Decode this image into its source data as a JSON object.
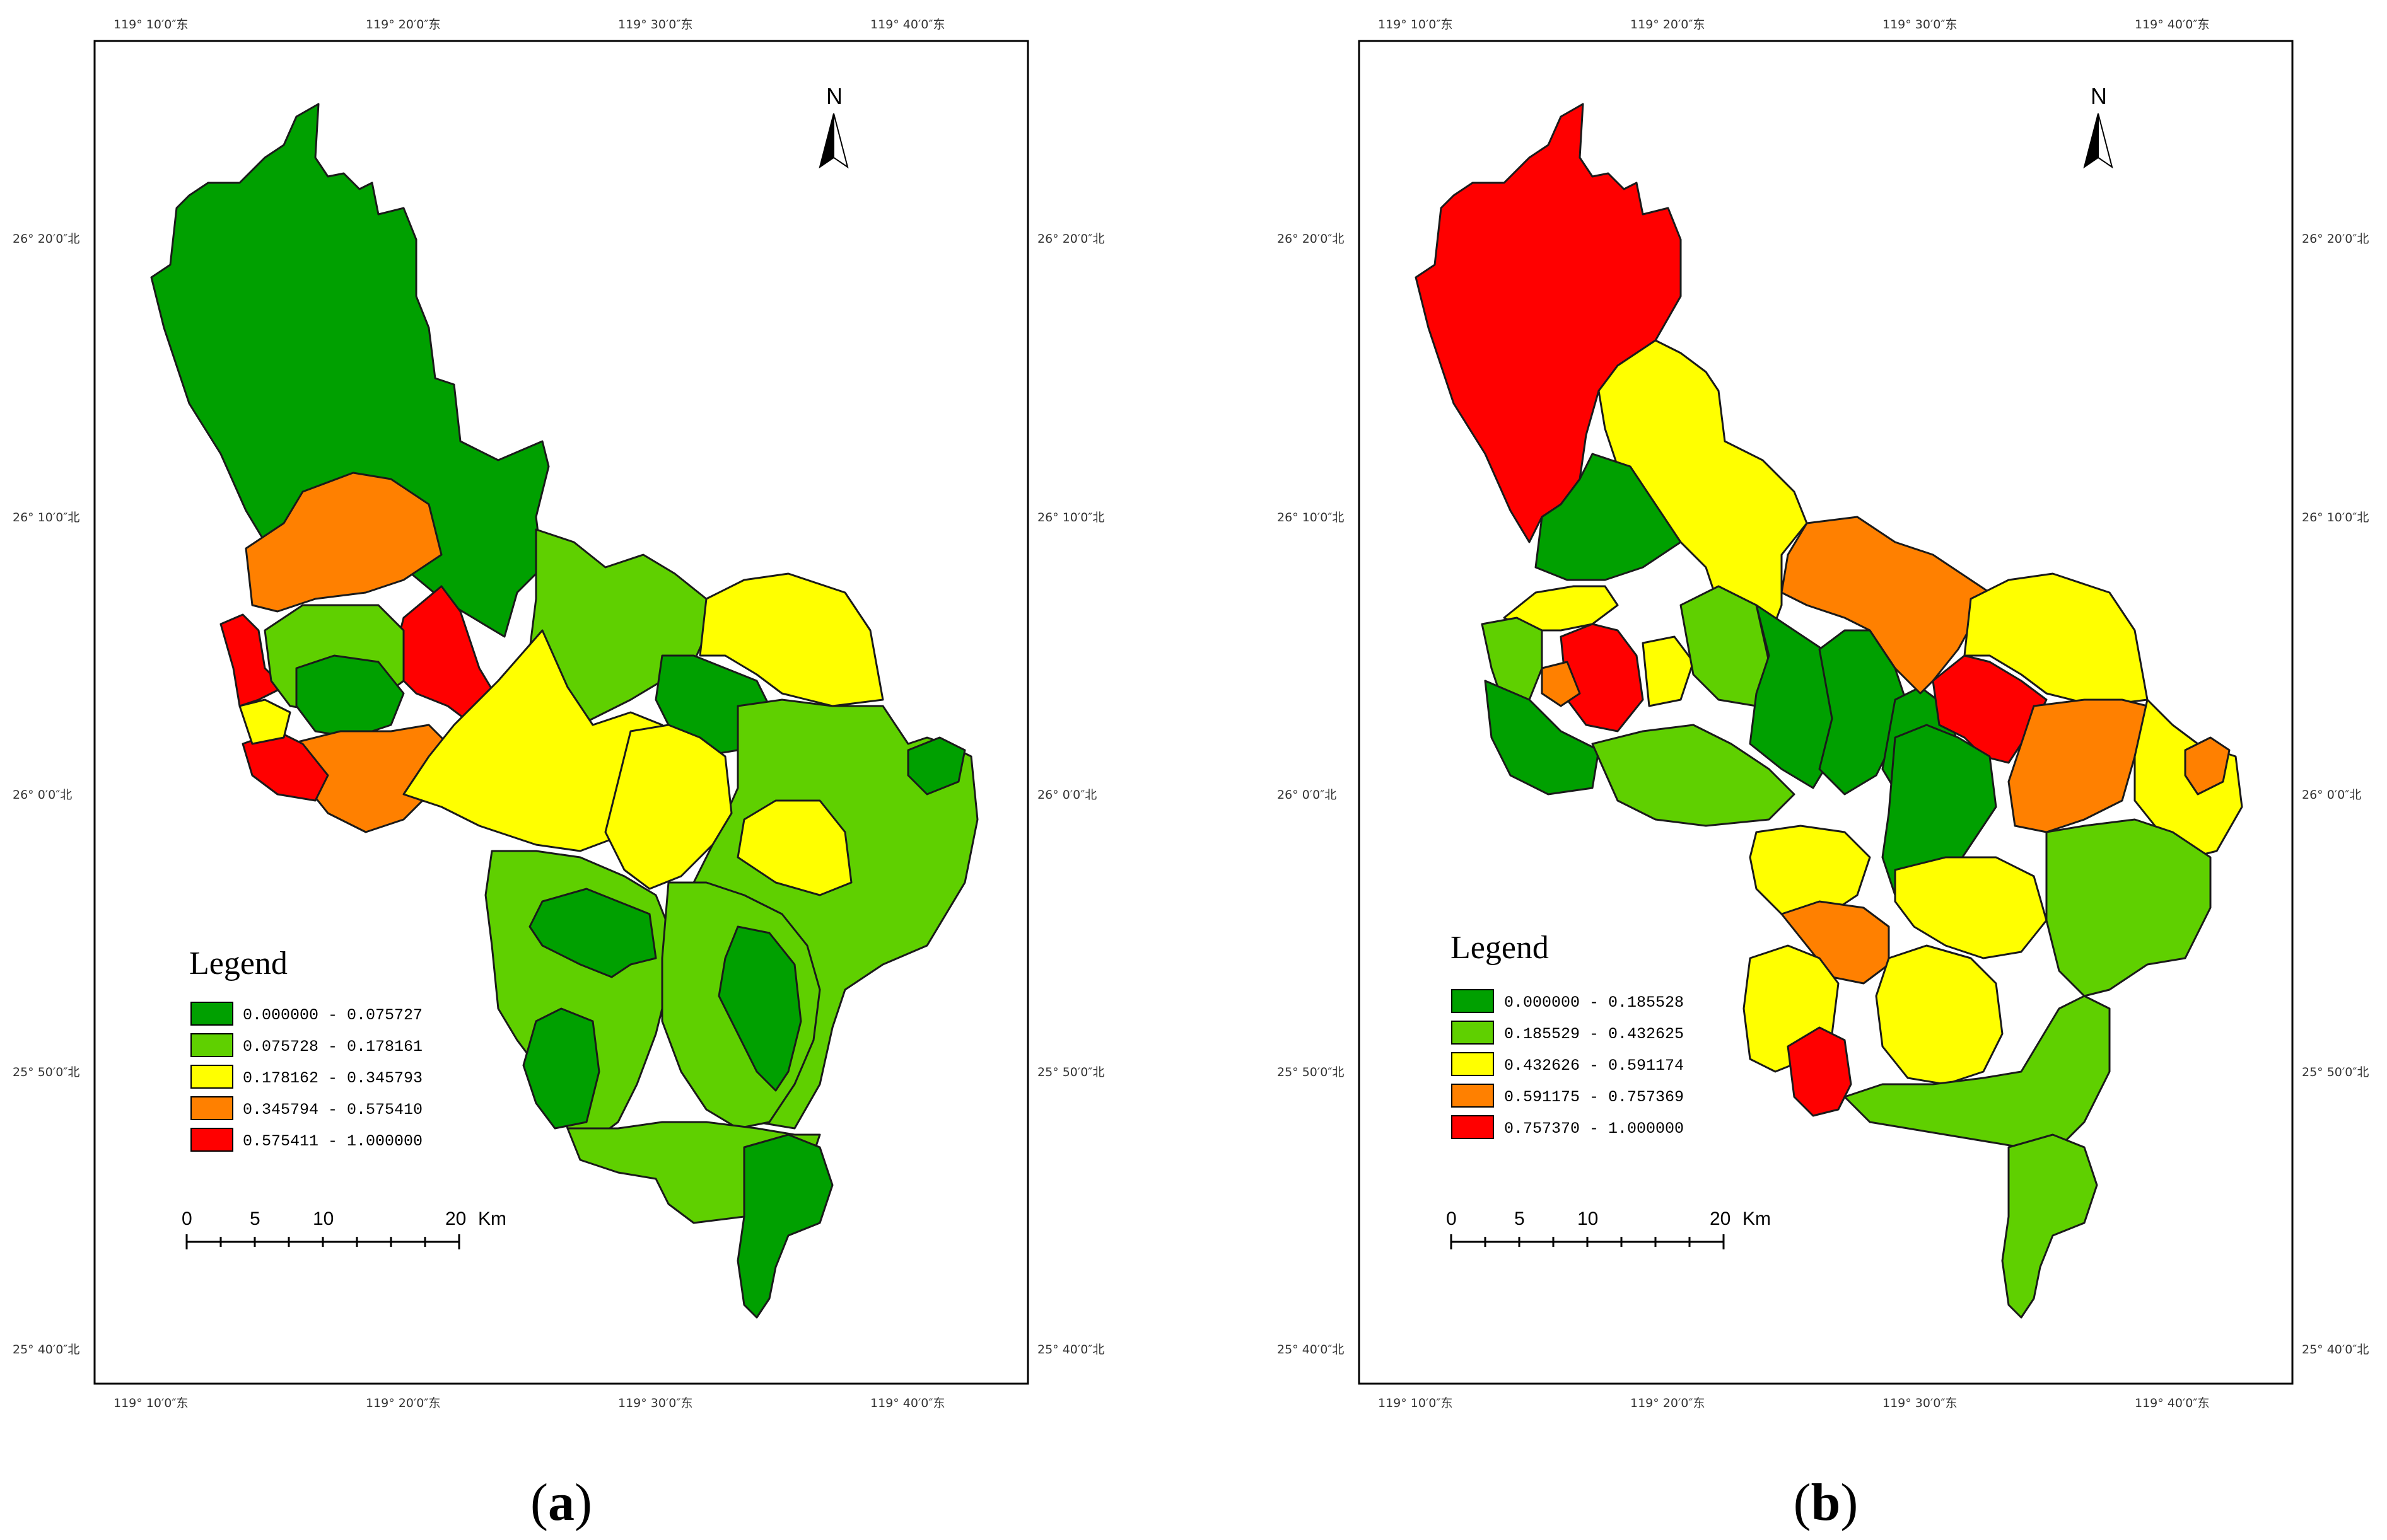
{
  "panels": [
    {
      "id": "a",
      "caption_letter": "a",
      "north_label": "N",
      "legend_title": "Legend",
      "legend": [
        {
          "label": "0.000000 - 0.075727",
          "color": "#00a000"
        },
        {
          "label": "0.075728 - 0.178161",
          "color": "#5fd000"
        },
        {
          "label": "0.178162 - 0.345793",
          "color": "#ffff00"
        },
        {
          "label": "0.345794 - 0.575410",
          "color": "#ff8000"
        },
        {
          "label": "0.575411 - 1.000000",
          "color": "#ff0000"
        }
      ],
      "scale": {
        "ticks": [
          "0",
          "5",
          "10",
          "20"
        ],
        "unit": "Km"
      },
      "lon_labels": [
        "119° 10′0″东",
        "119° 20′0″东",
        "119° 30′0″东",
        "119° 40′0″东"
      ],
      "lat_labels": [
        "26° 20′0″北",
        "26° 10′0″北",
        "26° 0′0″北",
        "25° 50′0″北",
        "25° 40′0″北"
      ]
    },
    {
      "id": "b",
      "caption_letter": "b",
      "north_label": "N",
      "legend_title": "Legend",
      "legend": [
        {
          "label": "0.000000 - 0.185528",
          "color": "#00a000"
        },
        {
          "label": "0.185529 - 0.432625",
          "color": "#5fd000"
        },
        {
          "label": "0.432626 - 0.591174",
          "color": "#ffff00"
        },
        {
          "label": "0.591175 - 0.757369",
          "color": "#ff8000"
        },
        {
          "label": "0.757370 - 1.000000",
          "color": "#ff0000"
        }
      ],
      "scale": {
        "ticks": [
          "0",
          "5",
          "10",
          "20"
        ],
        "unit": "Km"
      },
      "lon_labels": [
        "119° 10′0″东",
        "119° 20′0″东",
        "119° 30′0″东",
        "119° 40′0″东"
      ],
      "lat_labels": [
        "26° 20′0″北",
        "26° 10′0″北",
        "26° 0′0″北",
        "25° 50′0″北",
        "25° 40′0″北"
      ]
    }
  ]
}
